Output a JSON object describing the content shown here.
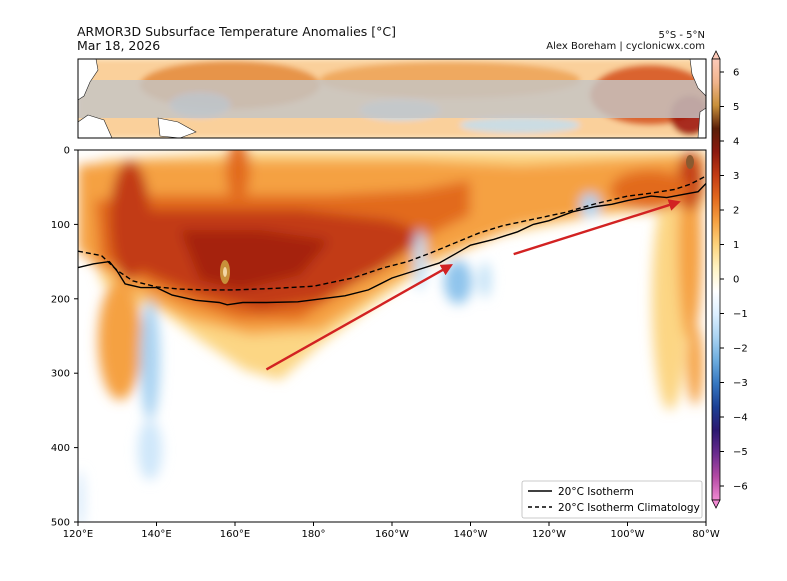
{
  "header": {
    "title": "ARMOR3D Subsurface Temperature Anomalies [°C]",
    "date": "Mar 18, 2026",
    "region": "5°S - 5°N",
    "credit": "Alex Boreham | cyclonicwx.com"
  },
  "chart_data": {
    "type": "heatmap",
    "title": "ARMOR3D Subsurface Temperature Anomalies [°C]",
    "xlabel": "",
    "ylabel": "",
    "x_range_deg_east": [
      120,
      280
    ],
    "ylim": [
      500,
      0
    ],
    "x_ticks": [
      {
        "value": 120,
        "label": "120°E"
      },
      {
        "value": 140,
        "label": "140°E"
      },
      {
        "value": 160,
        "label": "160°E"
      },
      {
        "value": 180,
        "label": "180°"
      },
      {
        "value": 200,
        "label": "160°W"
      },
      {
        "value": 220,
        "label": "140°W"
      },
      {
        "value": 240,
        "label": "120°W"
      },
      {
        "value": 260,
        "label": "100°W"
      },
      {
        "value": 280,
        "label": "80°W"
      }
    ],
    "y_ticks": [
      0,
      100,
      200,
      300,
      400,
      500
    ],
    "colorbar": {
      "ticks": [
        6,
        5,
        4,
        3,
        2,
        1,
        0,
        -1,
        -2,
        -3,
        -4,
        -5,
        -6
      ],
      "colors": [
        "#fdc9b8",
        "#f0b48c",
        "#c8903a",
        "#5a1e08",
        "#8c1a0f",
        "#c23b14",
        "#e26a1e",
        "#f5a142",
        "#fcd37c",
        "#fff3c2",
        "#ffffff",
        "#dcefff",
        "#a9d3f2",
        "#6cacde",
        "#3576c0",
        "#1b3f94",
        "#2b1770",
        "#6a2b8e",
        "#b44aa4",
        "#f08ad2"
      ]
    },
    "series": [
      {
        "name": "20°C Isotherm",
        "x": [
          120,
          124,
          128,
          130,
          132,
          136,
          140,
          144,
          150,
          156,
          158,
          162,
          168,
          176,
          182,
          188,
          194,
          200,
          206,
          212,
          216,
          220,
          226,
          232,
          236,
          240,
          246,
          252,
          256,
          260,
          266,
          270,
          274,
          278,
          280
        ],
        "values": [
          158,
          153,
          150,
          163,
          180,
          185,
          185,
          195,
          202,
          205,
          208,
          205,
          205,
          204,
          200,
          196,
          188,
          172,
          162,
          152,
          140,
          128,
          120,
          110,
          100,
          95,
          83,
          76,
          73,
          68,
          62,
          64,
          60,
          56,
          45
        ]
      },
      {
        "name": "20°C Isotherm Climatology",
        "x": [
          120,
          126,
          130,
          134,
          140,
          146,
          152,
          160,
          170,
          180,
          190,
          198,
          204,
          210,
          216,
          222,
          228,
          236,
          244,
          252,
          260,
          266,
          272,
          276,
          280
        ],
        "values": [
          136,
          142,
          162,
          176,
          184,
          187,
          188,
          188,
          186,
          183,
          172,
          158,
          150,
          138,
          125,
          112,
          102,
          93,
          84,
          72,
          62,
          58,
          53,
          46,
          35
        ]
      }
    ],
    "annotations": [
      {
        "type": "arrow",
        "from": [
          168,
          295
        ],
        "to": [
          215,
          155
        ],
        "color": "#d22222"
      },
      {
        "type": "arrow",
        "from": [
          231,
          140
        ],
        "to": [
          273,
          70
        ],
        "color": "#d22222"
      }
    ],
    "inset_map": {
      "band": "5°S - 5°N",
      "lon_range_deg_east": [
        120,
        280
      ]
    },
    "legend": {
      "placement": "bottom-right"
    }
  }
}
